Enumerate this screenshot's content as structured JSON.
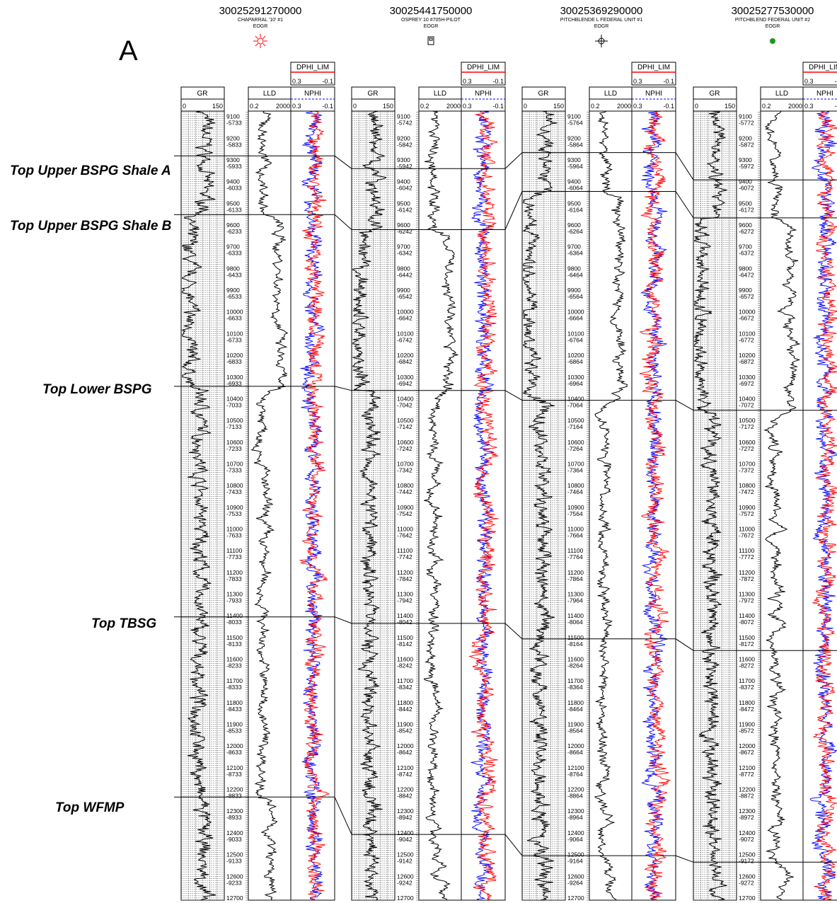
{
  "panel_letter": "A",
  "colors": {
    "ink": "#000000",
    "nphi_curve": "#ff0000",
    "dphi_curve": "#0000ff",
    "dphi_header": "#ff0000",
    "status_green": "#1a9a1a",
    "status_red": "#ff0000"
  },
  "wells": [
    {
      "api": "30025291270000",
      "name": "CHAPARRAL '10' #1",
      "op": "EOGR",
      "symbol": "sun-symbol-icon",
      "tvdss": [
        "-5733",
        "-5833",
        "-5933",
        "-6033",
        "-6133",
        "-6233",
        "-6333",
        "-6433",
        "-6533",
        "-6633",
        "-6733",
        "-6833",
        "-6933",
        "-7033",
        "-7133",
        "-7233",
        "-7333",
        "-7433",
        "-7533",
        "-7633",
        "-7733",
        "-7833",
        "-7933",
        "-8033",
        "-8133",
        "-8233",
        "-8333",
        "-8433",
        "-8533",
        "-8633",
        "-8733",
        "-8833",
        "-8933",
        "-9033",
        "-9133",
        "-9233",
        ""
      ],
      "tops_md": [
        9281,
        9552,
        10343,
        11405,
        12235
      ]
    },
    {
      "api": "30025441750000",
      "name": "OSPREY 10 #705H-PILOT",
      "op": "EOGR",
      "symbol": "square-flag-symbol-icon",
      "tvdss": [
        "-5742",
        "-5842",
        "-5942",
        "-6042",
        "-6142",
        "-6242",
        "-6342",
        "-6442",
        "-6542",
        "-6642",
        "-6742",
        "-6842",
        "-6942",
        "-7042",
        "-7142",
        "-7242",
        "-7342",
        "-7442",
        "-7542",
        "-7642",
        "-7742",
        "-7842",
        "-7942",
        "-8042",
        "-8142",
        "-8242",
        "-8342",
        "-8442",
        "-8542",
        "-8642",
        "-8742",
        "-8842",
        "-8942",
        "-9042",
        "-9142",
        "-9242",
        ""
      ],
      "tops_md": [
        9340,
        9621,
        10362,
        11435,
        12407
      ]
    },
    {
      "api": "30025369290000",
      "name": "PITCHBLENDE L FEDERAL UNIT #1",
      "op": "EOGR",
      "symbol": "gas-well-symbol-icon",
      "tvdss": [
        "-5764",
        "-5864",
        "-5964",
        "-6064",
        "-6164",
        "-6264",
        "-6364",
        "-6464",
        "-6564",
        "-6664",
        "-6764",
        "-6864",
        "-6964",
        "-7064",
        "-7164",
        "-7264",
        "-7364",
        "-7464",
        "-7564",
        "-7664",
        "-7764",
        "-7864",
        "-7964",
        "-8064",
        "-8164",
        "-8264",
        "-8364",
        "-8464",
        "-8564",
        "-8664",
        "-8764",
        "-8864",
        "-8964",
        "-9064",
        "-9164",
        "-9264",
        ""
      ],
      "tops_md": [
        9266,
        9445,
        10407,
        11506,
        12505
      ]
    },
    {
      "api": "30025277530000",
      "name": "PITCHBLEND FEDERAL UNIT #2",
      "op": "EOGR",
      "symbol": "oil-well-dot-icon",
      "tvdss": [
        "-5772",
        "-5872",
        "-5972",
        "-6072",
        "-6172",
        "-6272",
        "-6372",
        "-6472",
        "-6572",
        "-6672",
        "-6772",
        "-6872",
        "-6972",
        "-7072",
        "-7172",
        "-7272",
        "-7372",
        "-7472",
        "-7572",
        "-7672",
        "-7772",
        "-7872",
        "-7972",
        "-8072",
        "-8172",
        "-8272",
        "-8372",
        "-8472",
        "-8572",
        "-8672",
        "-8772",
        "-8872",
        "-8972",
        "-9072",
        "-9172",
        "-9272",
        ""
      ],
      "tops_md": [
        9392,
        9567,
        10453,
        11560,
        12535
      ]
    }
  ],
  "tracks": {
    "gr": {
      "name": "GR",
      "min": "0",
      "max": "150"
    },
    "lld": {
      "name": "LLD",
      "min": "0.2",
      "max": "2000"
    },
    "nphi": {
      "name": "NPHI",
      "min": "0.3",
      "max": "-0.1"
    },
    "dphi": {
      "name": "DPHI_LIM",
      "min": "0.3",
      "max": "-0.1"
    }
  },
  "depth_labels": [
    "9100",
    "9200",
    "9300",
    "9400",
    "9500",
    "9600",
    "9700",
    "9800",
    "9900",
    "10000",
    "10100",
    "10200",
    "10300",
    "10400",
    "10500",
    "10600",
    "10700",
    "10800",
    "10900",
    "11000",
    "11100",
    "11200",
    "11300",
    "11400",
    "11500",
    "11600",
    "11700",
    "11800",
    "11900",
    "12000",
    "12100",
    "12200",
    "12300",
    "12400",
    "12500",
    "12600",
    "12700"
  ],
  "md_start": 9075,
  "md_end": 12710,
  "formation_tops": [
    "Top Upper BSPG Shale A",
    "Top Upper BSPG Shale B",
    "Top Lower BSPG",
    "Top TBSG",
    "Top WFMP"
  ]
}
